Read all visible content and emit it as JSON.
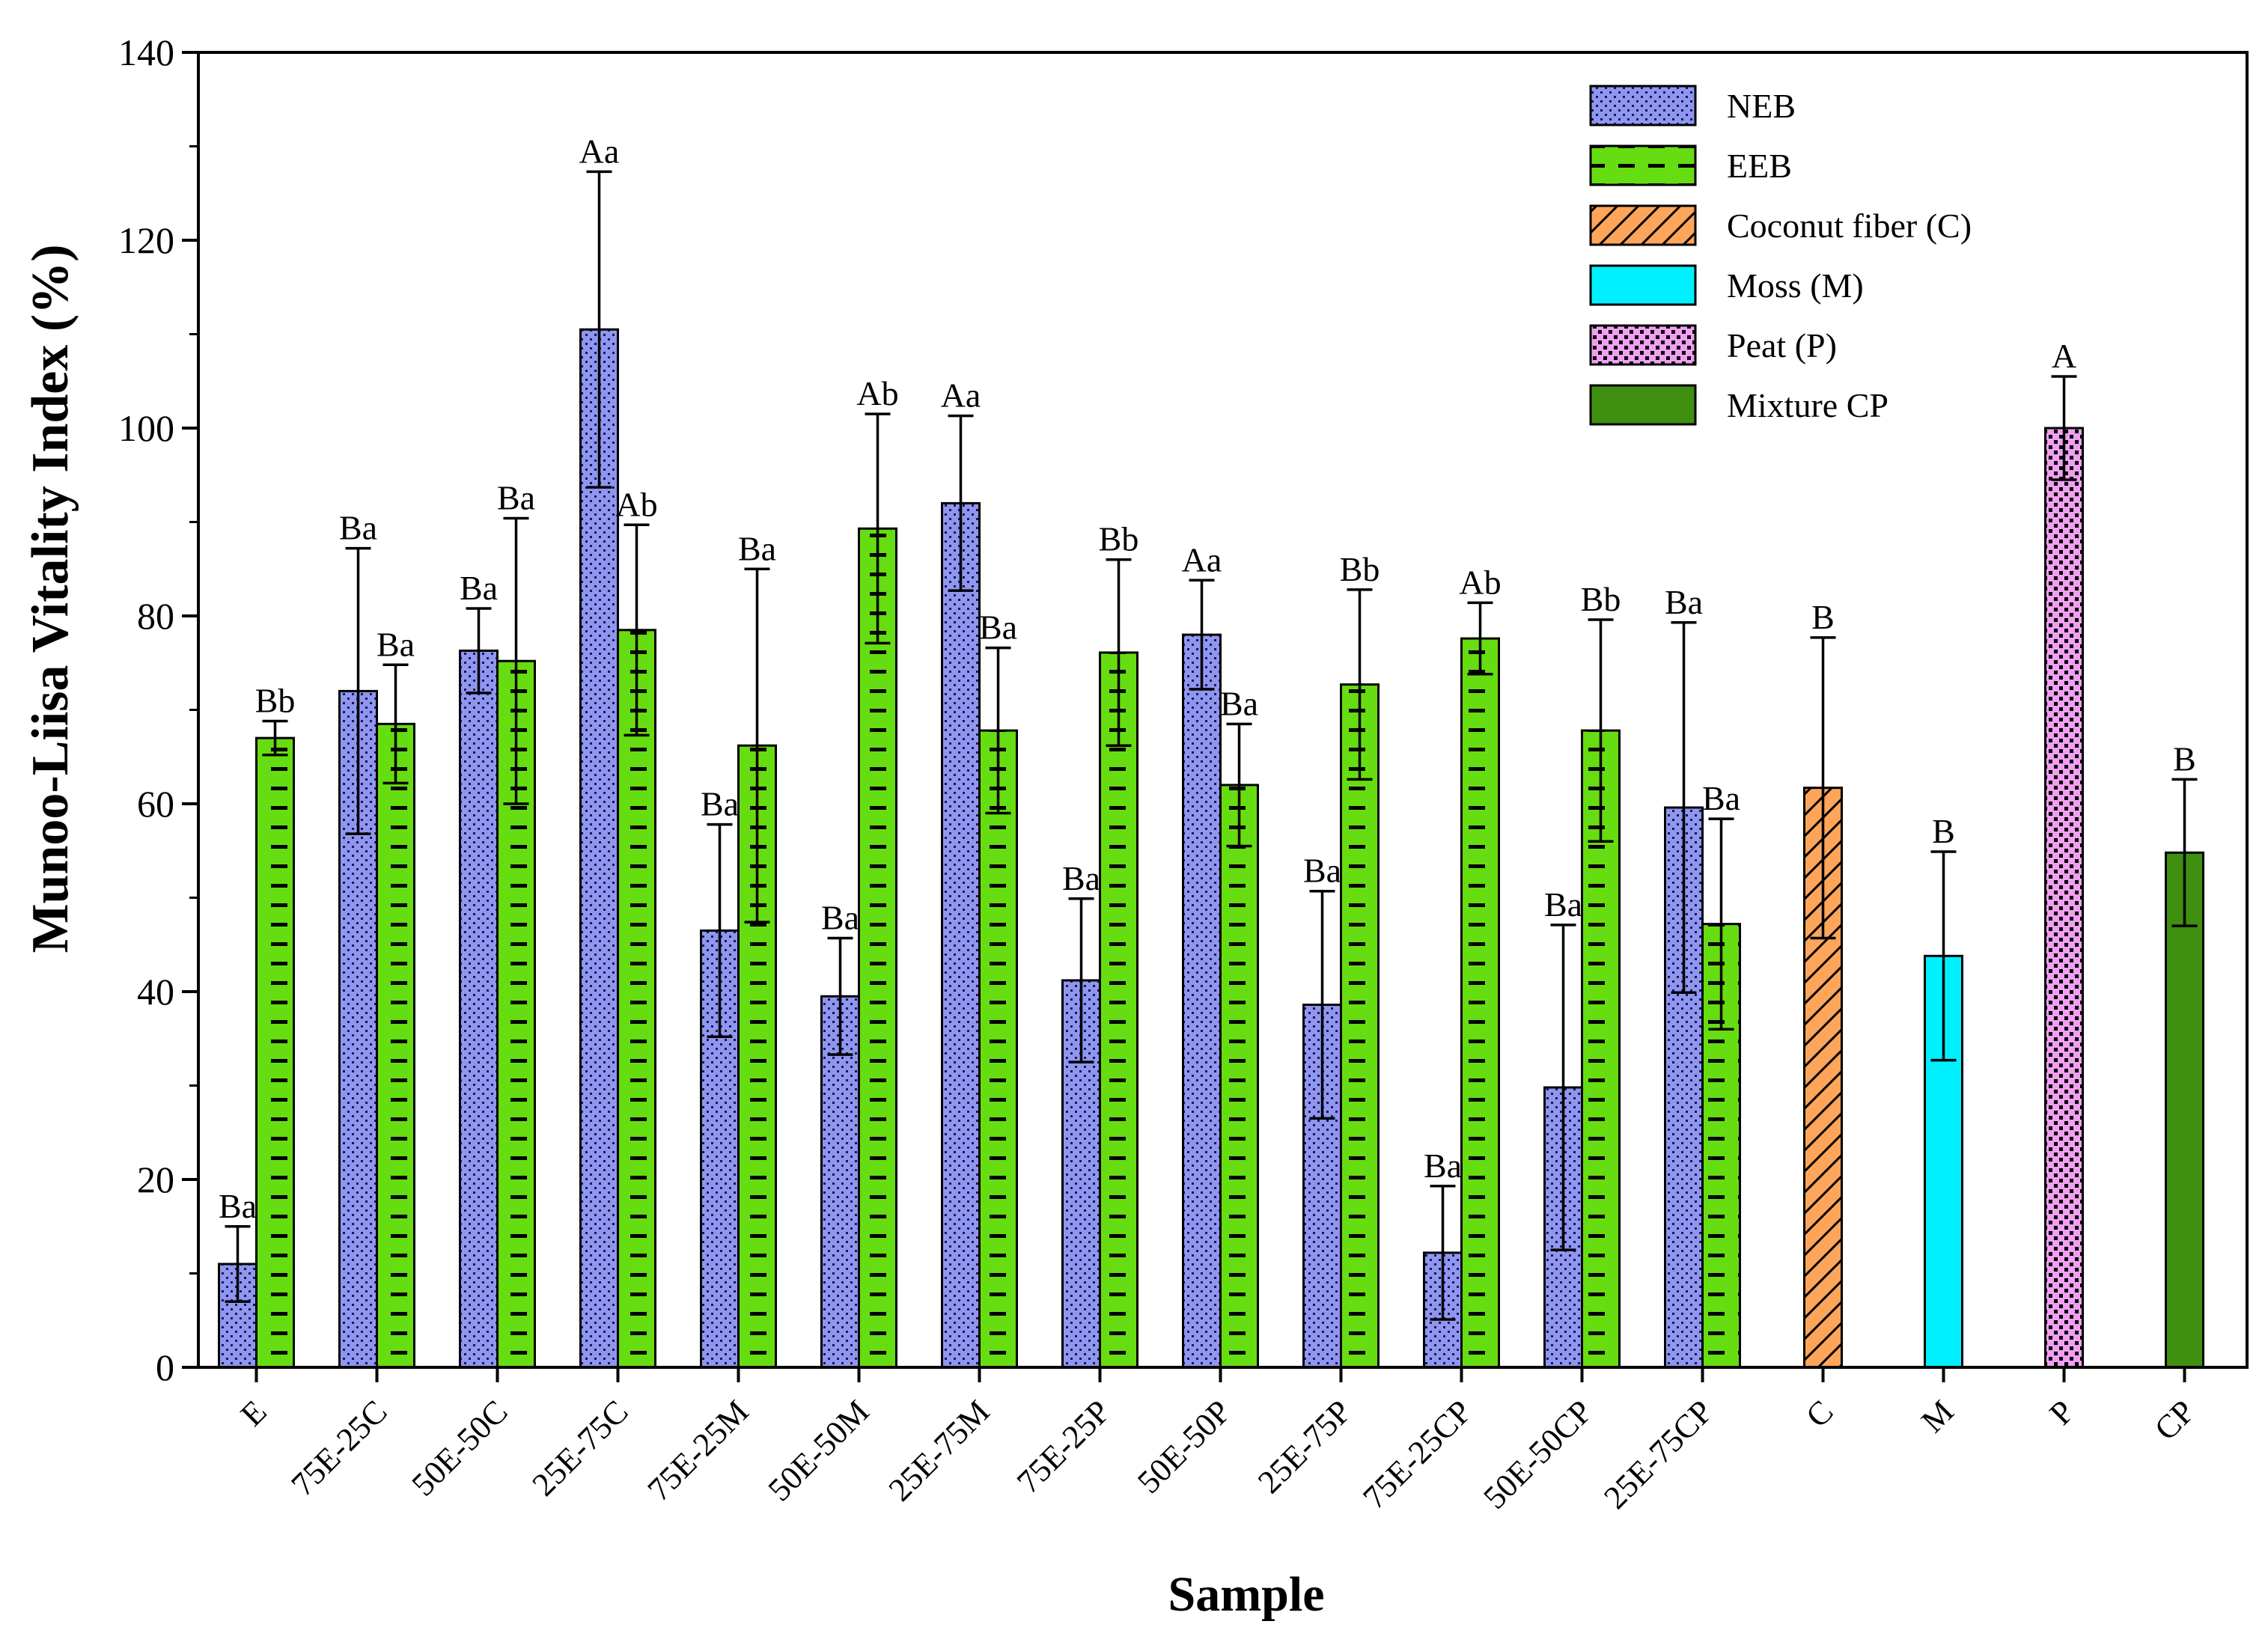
{
  "chart_data": {
    "type": "bar",
    "title": "",
    "xlabel": "Sample",
    "ylabel": "Munoo-Liisa Vitality Index (%)",
    "ylim": [
      0,
      140
    ],
    "yticks": [
      "0",
      "20",
      "40",
      "60",
      "80",
      "100",
      "120",
      "140"
    ],
    "categories": [
      "E",
      "75E-25C",
      "50E-50C",
      "25E-75C",
      "75E-25M",
      "50E-50M",
      "25E-75M",
      "75E-25P",
      "50E-50P",
      "25E-75P",
      "75E-25CP",
      "50E-50CP",
      "25E-75CP",
      "C",
      "M",
      "P",
      "CP"
    ],
    "series": [
      {
        "name": "NEB",
        "color": "#8f96f2",
        "pattern": "dots",
        "values": [
          11,
          72,
          76.3,
          110.5,
          46.5,
          39.5,
          92,
          41.2,
          78,
          38.6,
          12.2,
          29.8,
          59.6,
          null,
          null,
          null,
          null
        ],
        "errors": [
          4,
          15.2,
          4.5,
          16.8,
          11.3,
          6.2,
          9.3,
          8.7,
          5.8,
          12.1,
          7.1,
          17.3,
          19.7,
          null,
          null,
          null,
          null
        ],
        "labels": [
          "Ba",
          "Ba",
          "Ba",
          "Aa",
          "Ba",
          "Ba",
          "Aa",
          "Ba",
          "Aa",
          "Ba",
          "Ba",
          "Ba",
          "Ba",
          null,
          null,
          null,
          null
        ]
      },
      {
        "name": "EEB",
        "color": "#66dd11",
        "pattern": "dashes",
        "values": [
          67,
          68.5,
          75.2,
          78.5,
          66.2,
          89.3,
          67.8,
          76.1,
          62,
          72.7,
          77.6,
          67.8,
          47.2,
          null,
          null,
          null,
          null
        ],
        "errors": [
          1.8,
          6.3,
          15.2,
          11.2,
          18.8,
          12.2,
          8.8,
          9.9,
          6.5,
          10.1,
          3.8,
          11.8,
          11.2,
          null,
          null,
          null,
          null
        ],
        "labels": [
          "Bb",
          "Ba",
          "Ba",
          "Ab",
          "Ba",
          "Ab",
          "Ba",
          "Bb",
          "Ba",
          "Bb",
          "Ab",
          "Bb",
          "Ba",
          null,
          null,
          null,
          null
        ]
      },
      {
        "name": "Coconut fiber (C)",
        "color": "#ffa55a",
        "pattern": "hatch",
        "values": [
          null,
          null,
          null,
          null,
          null,
          null,
          null,
          null,
          null,
          null,
          null,
          null,
          null,
          61.7,
          null,
          null,
          null
        ],
        "errors": [
          null,
          null,
          null,
          null,
          null,
          null,
          null,
          null,
          null,
          null,
          null,
          null,
          null,
          16,
          null,
          null,
          null
        ],
        "labels": [
          null,
          null,
          null,
          null,
          null,
          null,
          null,
          null,
          null,
          null,
          null,
          null,
          null,
          "B",
          null,
          null,
          null
        ]
      },
      {
        "name": "Moss (M)",
        "color": "#00f0ff",
        "pattern": "solid",
        "values": [
          null,
          null,
          null,
          null,
          null,
          null,
          null,
          null,
          null,
          null,
          null,
          null,
          null,
          null,
          43.8,
          null,
          null
        ],
        "errors": [
          null,
          null,
          null,
          null,
          null,
          null,
          null,
          null,
          null,
          null,
          null,
          null,
          null,
          null,
          11.1,
          null,
          null
        ],
        "labels": [
          null,
          null,
          null,
          null,
          null,
          null,
          null,
          null,
          null,
          null,
          null,
          null,
          null,
          null,
          "B",
          null,
          null
        ]
      },
      {
        "name": "Peat (P)",
        "color": "#f0a0f0",
        "pattern": "checker",
        "values": [
          null,
          null,
          null,
          null,
          null,
          null,
          null,
          null,
          null,
          null,
          null,
          null,
          null,
          null,
          null,
          100,
          null
        ],
        "errors": [
          null,
          null,
          null,
          null,
          null,
          null,
          null,
          null,
          null,
          null,
          null,
          null,
          null,
          null,
          null,
          5.5,
          null
        ],
        "labels": [
          null,
          null,
          null,
          null,
          null,
          null,
          null,
          null,
          null,
          null,
          null,
          null,
          null,
          null,
          null,
          "A",
          null
        ]
      },
      {
        "name": "Mixture CP",
        "color": "#3f8f10",
        "pattern": "solid",
        "values": [
          null,
          null,
          null,
          null,
          null,
          null,
          null,
          null,
          null,
          null,
          null,
          null,
          null,
          null,
          null,
          null,
          54.8
        ],
        "errors": [
          null,
          null,
          null,
          null,
          null,
          null,
          null,
          null,
          null,
          null,
          null,
          null,
          null,
          null,
          null,
          null,
          7.8
        ],
        "labels": [
          null,
          null,
          null,
          null,
          null,
          null,
          null,
          null,
          null,
          null,
          null,
          null,
          null,
          null,
          null,
          null,
          "B"
        ]
      }
    ],
    "legend_position": "top-right",
    "grid": false
  }
}
